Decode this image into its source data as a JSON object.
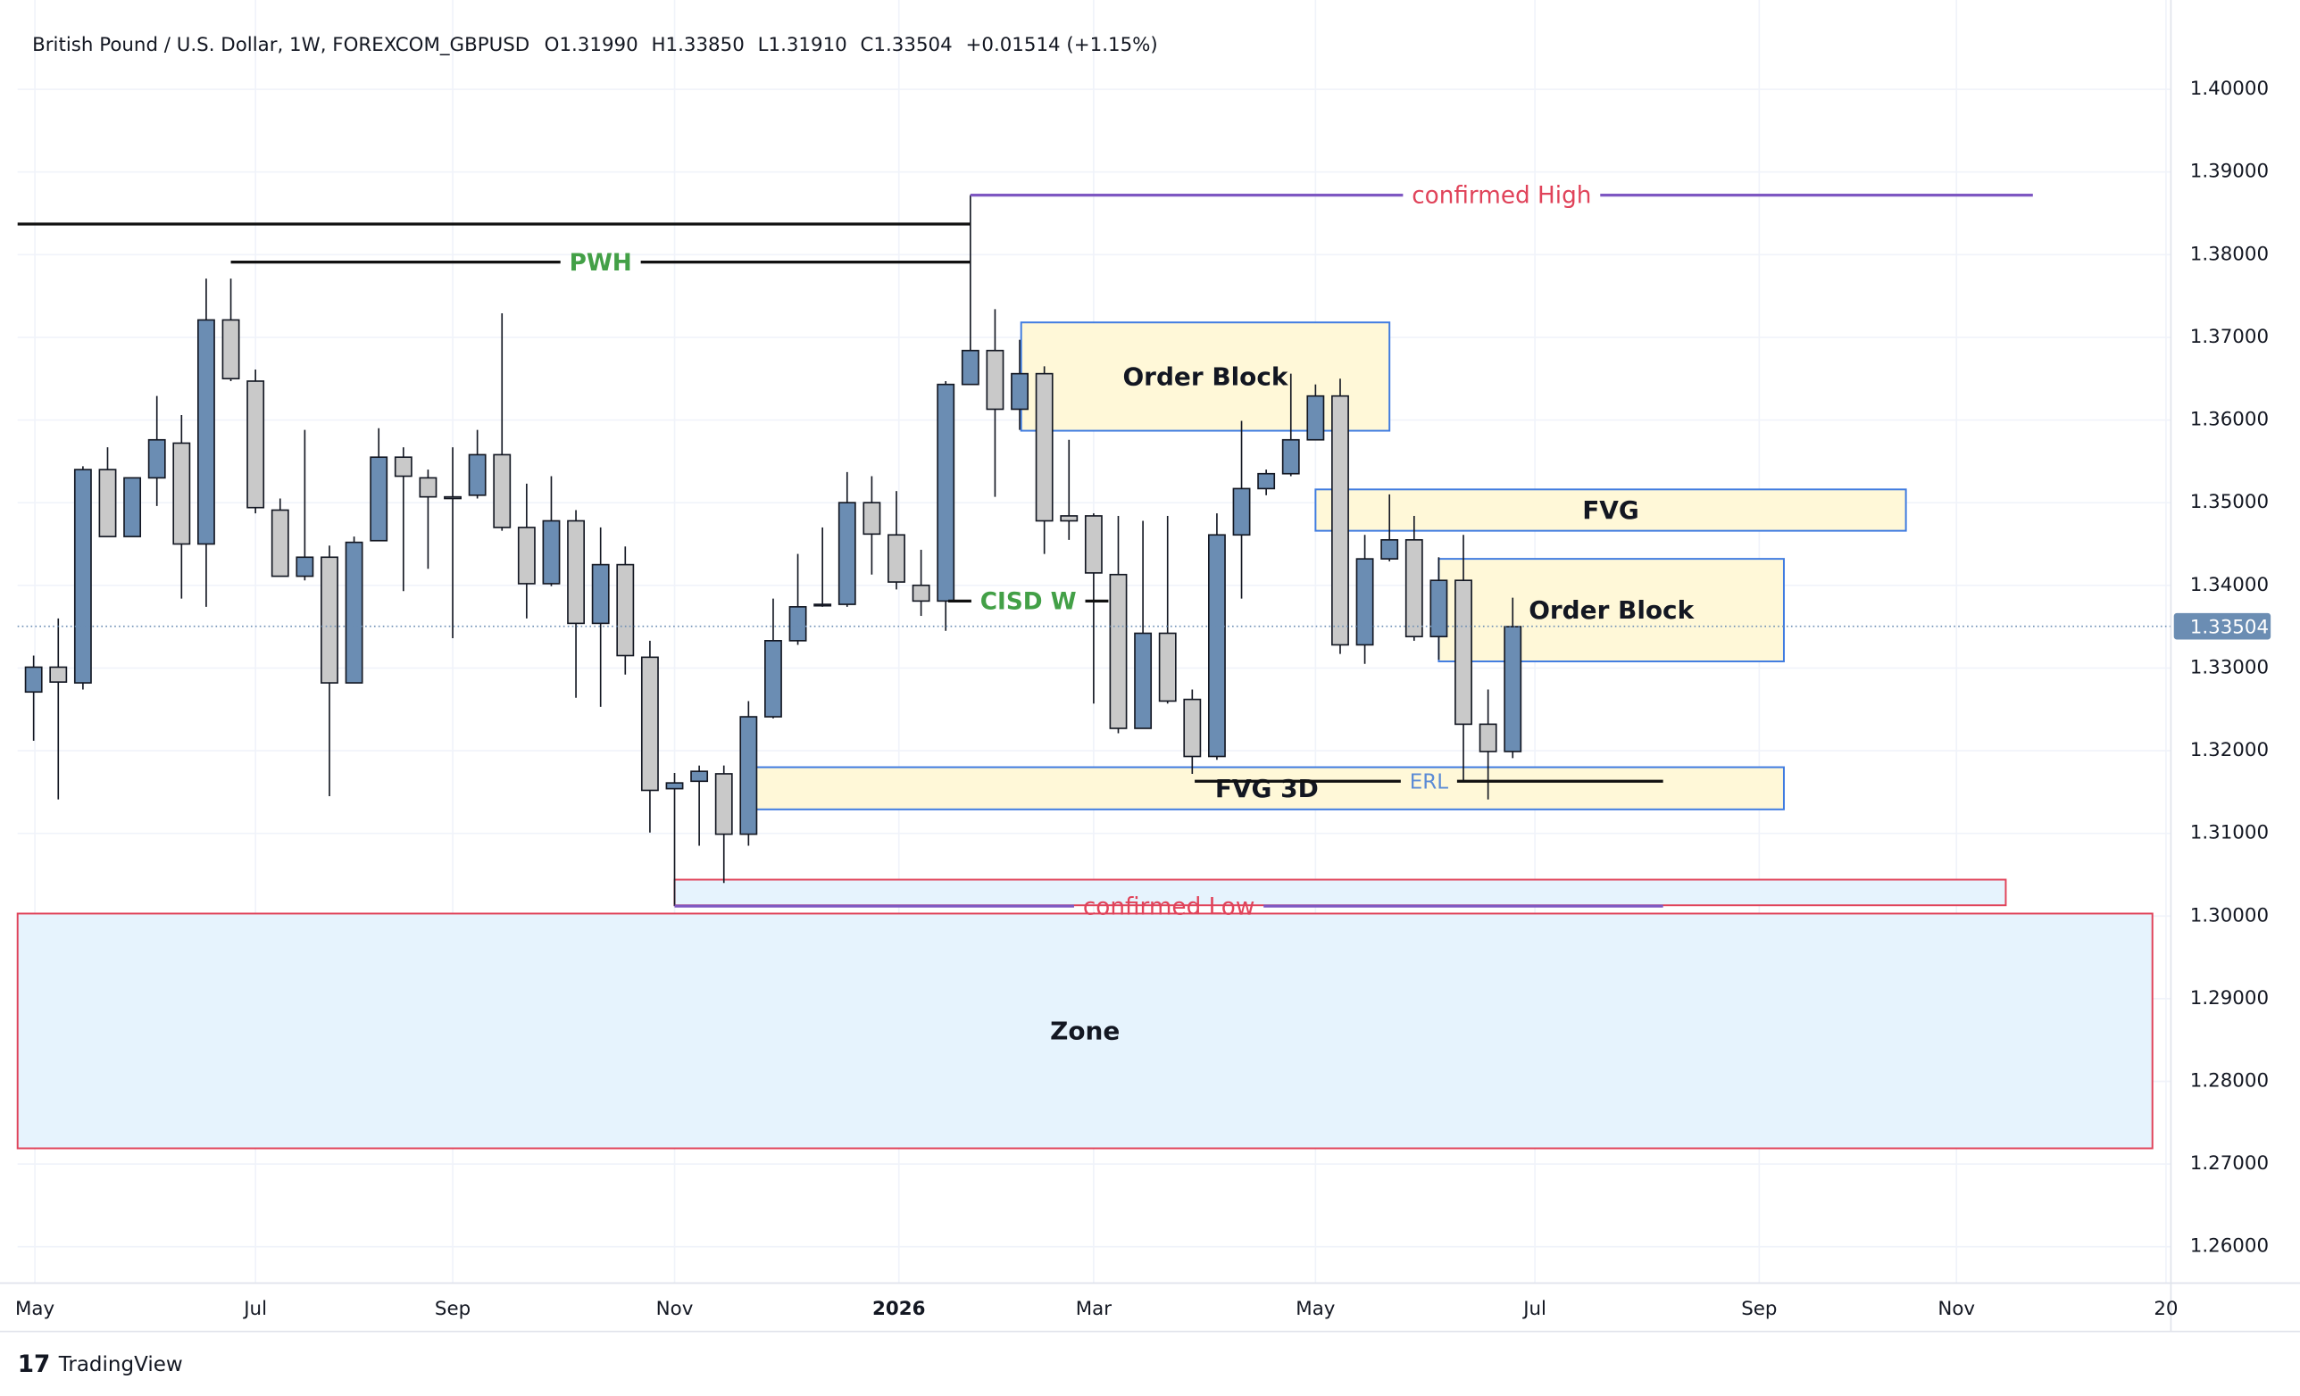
{
  "chart_data": {
    "type": "candlestick",
    "title": "British Pound / U.S. Dollar, 1W, FOREXCOM_GBPUSD",
    "ohlc_header": [
      "O1.31990",
      "H1.33850",
      "L1.31910",
      "C1.33504",
      "+0.01514 (+1.15%)"
    ],
    "brand": "TradingView",
    "up_color": "#6b8db3",
    "down_color": "#c9c9c9",
    "open": [
      1.3271,
      1.3301,
      1.3282,
      1.354,
      1.3459,
      1.353,
      1.3572,
      1.345,
      1.3721,
      1.3647,
      1.3491,
      1.3411,
      1.3434,
      1.3282,
      1.3454,
      1.3555,
      1.353,
      1.3507,
      1.3509,
      1.3558,
      1.347,
      1.3402,
      1.3478,
      1.3354,
      1.3425,
      1.3313,
      1.3154,
      1.3163,
      1.3172,
      1.3099,
      1.3241,
      1.3333,
      1.3376,
      1.3377,
      1.35,
      1.3461,
      1.34,
      1.3381,
      1.3643,
      1.3684,
      1.3613,
      1.3656,
      1.3484,
      1.3484,
      1.3413,
      1.3227,
      1.3342,
      1.3262,
      1.3193,
      1.3461,
      1.3517,
      1.3535,
      1.3576,
      1.3629,
      1.3328,
      1.3432,
      1.3455,
      1.3338,
      1.3406,
      1.3232,
      1.3199
    ],
    "high": [
      1.3315,
      1.336,
      1.3544,
      1.3567,
      1.353,
      1.3629,
      1.3606,
      1.3771,
      1.3771,
      1.3661,
      1.3505,
      1.3588,
      1.3448,
      1.3459,
      1.359,
      1.3567,
      1.354,
      1.3567,
      1.3588,
      1.3729,
      1.3523,
      1.3532,
      1.3491,
      1.347,
      1.3447,
      1.3333,
      1.3173,
      1.3182,
      1.3182,
      1.326,
      1.3384,
      1.3438,
      1.347,
      1.3537,
      1.3532,
      1.3514,
      1.3443,
      1.3647,
      1.3872,
      1.3734,
      1.3697,
      1.3665,
      1.3576,
      1.3487,
      1.3484,
      1.3478,
      1.3484,
      1.3274,
      1.3487,
      1.3599,
      1.354,
      1.3656,
      1.3643,
      1.365,
      1.3461,
      1.351,
      1.3484,
      1.3434,
      1.3461,
      1.3274,
      1.3385
    ],
    "low": [
      1.3212,
      1.3141,
      1.3274,
      1.3459,
      1.3459,
      1.3496,
      1.3384,
      1.3374,
      1.3647,
      1.3487,
      1.3411,
      1.3406,
      1.3145,
      1.3282,
      1.3454,
      1.3393,
      1.342,
      1.3336,
      1.3505,
      1.3466,
      1.336,
      1.3399,
      1.3264,
      1.3253,
      1.3292,
      1.3101,
      1.3012,
      1.3085,
      1.304,
      1.3085,
      1.3239,
      1.3328,
      1.3374,
      1.3374,
      1.3413,
      1.3395,
      1.3363,
      1.3345,
      1.3643,
      1.3507,
      1.3588,
      1.3438,
      1.3455,
      1.3257,
      1.3221,
      1.3227,
      1.3257,
      1.3172,
      1.3189,
      1.3384,
      1.3509,
      1.3532,
      1.3576,
      1.3317,
      1.3305,
      1.3429,
      1.3333,
      1.331,
      1.3164,
      1.3141,
      1.3191
    ],
    "close": [
      1.3301,
      1.3283,
      1.354,
      1.3459,
      1.353,
      1.3576,
      1.345,
      1.3721,
      1.365,
      1.3494,
      1.3411,
      1.3434,
      1.3282,
      1.3452,
      1.3555,
      1.3532,
      1.3507,
      1.3505,
      1.3558,
      1.347,
      1.3402,
      1.3478,
      1.3354,
      1.3425,
      1.3315,
      1.3152,
      1.3161,
      1.3175,
      1.3099,
      1.3241,
      1.3333,
      1.3374,
      1.3377,
      1.35,
      1.3462,
      1.3404,
      1.3381,
      1.3643,
      1.3684,
      1.3613,
      1.3656,
      1.3478,
      1.3478,
      1.3415,
      1.3227,
      1.3342,
      1.326,
      1.3193,
      1.3461,
      1.3517,
      1.3535,
      1.3576,
      1.3629,
      1.3328,
      1.3432,
      1.3455,
      1.3338,
      1.3406,
      1.3232,
      1.3199,
      1.335
    ],
    "xlim": [
      -0.65,
      86.7
    ],
    "xticks": [
      {
        "value": 0.05,
        "label": "May"
      },
      {
        "value": 9.0,
        "label": "Jul"
      },
      {
        "value": 17.0,
        "label": "Sep"
      },
      {
        "value": 26.0,
        "label": "Nov"
      },
      {
        "value": 35.1,
        "label": "2026"
      },
      {
        "value": 43.0,
        "label": "Mar"
      },
      {
        "value": 52.0,
        "label": "May"
      },
      {
        "value": 60.9,
        "label": "Jul"
      },
      {
        "value": 70.0,
        "label": "Sep"
      },
      {
        "value": 78.0,
        "label": "Nov"
      },
      {
        "value": 86.5,
        "label": "20"
      }
    ],
    "ylim": [
      1.2556,
      1.4108
    ],
    "yticks": [
      {
        "value": 1.26,
        "label": "1.26000"
      },
      {
        "value": 1.27,
        "label": "1.27000"
      },
      {
        "value": 1.28,
        "label": "1.28000"
      },
      {
        "value": 1.29,
        "label": "1.29000"
      },
      {
        "value": 1.3,
        "label": "1.30000"
      },
      {
        "value": 1.31,
        "label": "1.31000"
      },
      {
        "value": 1.32,
        "label": "1.32000"
      },
      {
        "value": 1.33,
        "label": "1.33000"
      },
      {
        "value": 1.34,
        "label": "1.34000"
      },
      {
        "value": 1.35,
        "label": "1.35000"
      },
      {
        "value": 1.36,
        "label": "1.36000"
      },
      {
        "value": 1.37,
        "label": "1.37000"
      },
      {
        "value": 1.38,
        "label": "1.38000"
      },
      {
        "value": 1.39,
        "label": "1.39000"
      },
      {
        "value": 1.4,
        "label": "1.40000"
      }
    ],
    "grid": true,
    "last_price": {
      "value": 1.33504,
      "label": "1.33504"
    },
    "zones": [
      {
        "label": "Zone",
        "x0": -0.65,
        "x1": 85.95,
        "top": 1.3003,
        "bottom": 1.2719,
        "fill": "#e6f3fd",
        "stroke": "#e0435a"
      },
      {
        "x0": 26.0,
        "x1": 80.0,
        "top": 1.3044,
        "bottom": 1.3013,
        "fill": "#e6f3fd",
        "stroke": "#e0435a"
      },
      {
        "label": "Order Block",
        "x0": 40.06,
        "x1": 55.0,
        "top": 1.3718,
        "bottom": 1.3587,
        "fill": "#fff8d8",
        "stroke": "#3f7be0"
      },
      {
        "label": "FVG",
        "x0": 52.0,
        "x1": 75.95,
        "top": 1.3516,
        "bottom": 1.3466,
        "fill": "#fff8d8",
        "stroke": "#3f7be0"
      },
      {
        "label": "Order Block",
        "x0": 57.0,
        "x1": 71.0,
        "top": 1.3432,
        "bottom": 1.3308,
        "fill": "#fff8d8",
        "stroke": "#3f7be0"
      },
      {
        "label": "FVG 3D",
        "x0": 29.05,
        "x1": 71.0,
        "top": 1.318,
        "bottom": 1.3129,
        "fill": "#fff8d8",
        "stroke": "#3f7be0"
      }
    ],
    "levels": [
      {
        "x0": -0.65,
        "x1": 38.0,
        "price": 1.3837,
        "color": "#111111"
      },
      {
        "label": "confirmed High",
        "x0": 38.0,
        "x1": 81.1,
        "price": 1.3872,
        "color": "#7e57c2",
        "label_color": "#e0435a"
      },
      {
        "label": "PWH",
        "x0": 8.0,
        "x1": 38.0,
        "price": 1.3791,
        "color": "#111111",
        "label_color": "#43a047"
      },
      {
        "label": "CISD W",
        "x0": 37.1,
        "x1": 43.6,
        "price": 1.3381,
        "color": "#111111",
        "label_color": "#43a047"
      },
      {
        "label": "ERL",
        "x0": 47.1,
        "x1": 66.1,
        "price": 1.3163,
        "color": "#111111",
        "label_color": "#5b8bd6"
      },
      {
        "label": "confirmed Low",
        "x0": 26.0,
        "x1": 66.1,
        "price": 1.3012,
        "color": "#7e57c2",
        "label_color": "#e0435a"
      }
    ]
  }
}
